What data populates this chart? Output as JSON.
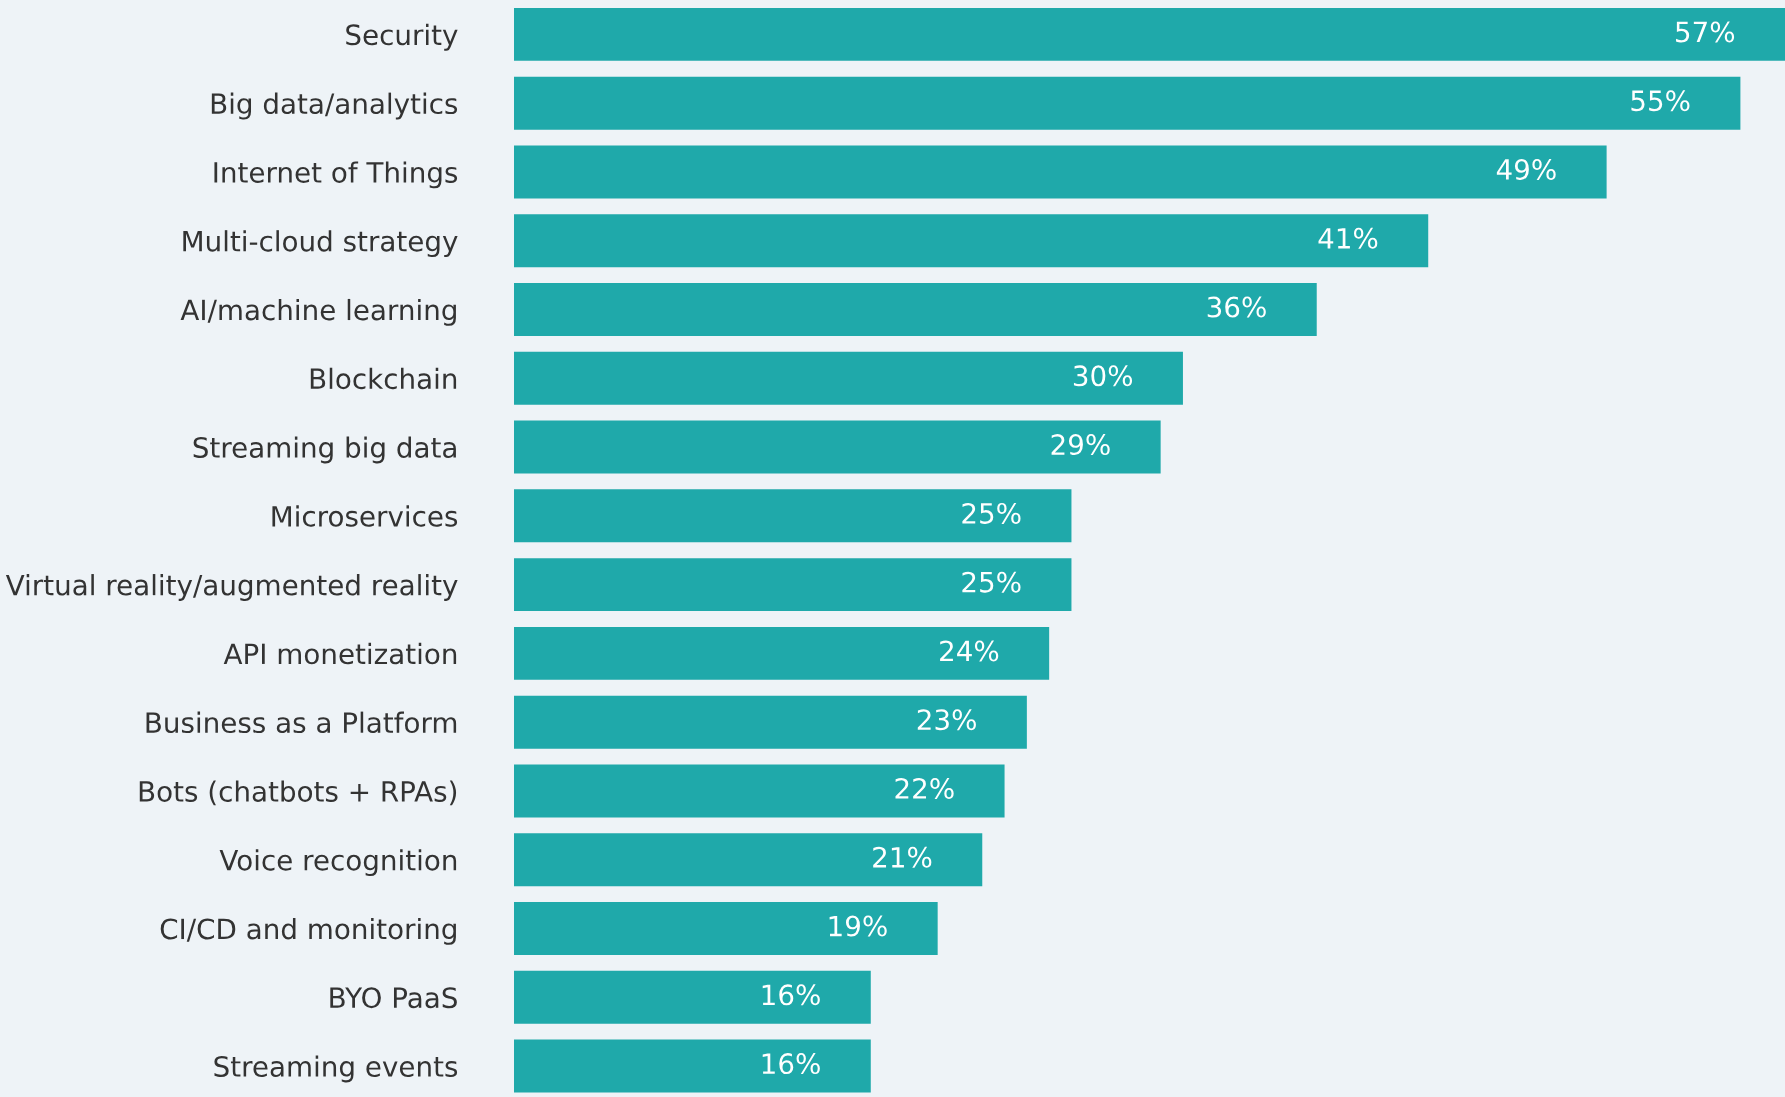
{
  "chart_data": {
    "type": "bar",
    "orientation": "horizontal",
    "categories": [
      "Security",
      "Big data/analytics",
      "Internet of Things",
      "Multi-cloud strategy",
      "AI/machine learning",
      "Blockchain",
      "Streaming big data",
      "Microservices",
      "Virtual reality/augmented reality",
      "API monetization",
      "Business as a Platform",
      "Bots (chatbots + RPAs)",
      "Voice recognition",
      "CI/CD and monitoring",
      "BYO PaaS",
      "Streaming events"
    ],
    "values": [
      57,
      55,
      49,
      41,
      36,
      30,
      29,
      25,
      25,
      24,
      23,
      22,
      21,
      19,
      16,
      16
    ],
    "value_labels": [
      "57%",
      "55%",
      "49%",
      "41%",
      "36%",
      "30%",
      "29%",
      "25%",
      "25%",
      "24%",
      "23%",
      "22%",
      "21%",
      "19%",
      "16%",
      "16%"
    ],
    "color": "#1fa9aa",
    "xlim": [
      0,
      57
    ],
    "tick_labels": "y",
    "grid": false,
    "legend": false
  }
}
